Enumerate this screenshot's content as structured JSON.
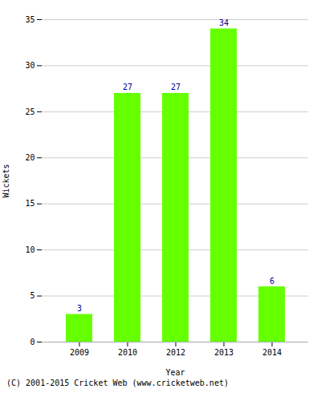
{
  "chart_data": {
    "type": "bar",
    "categories": [
      "2009",
      "2010",
      "2012",
      "2013",
      "2014"
    ],
    "values": [
      3,
      27,
      27,
      34,
      6
    ],
    "color": "#66ff00",
    "xlabel": "Year",
    "ylabel": "Wickets",
    "ylim": [
      0,
      35
    ],
    "yticks": [
      0,
      5,
      10,
      15,
      20,
      25,
      30,
      35
    ],
    "grid": true,
    "data_labels": true,
    "caption": "(C) 2001-2015 Cricket Web (www.cricketweb.net)"
  }
}
